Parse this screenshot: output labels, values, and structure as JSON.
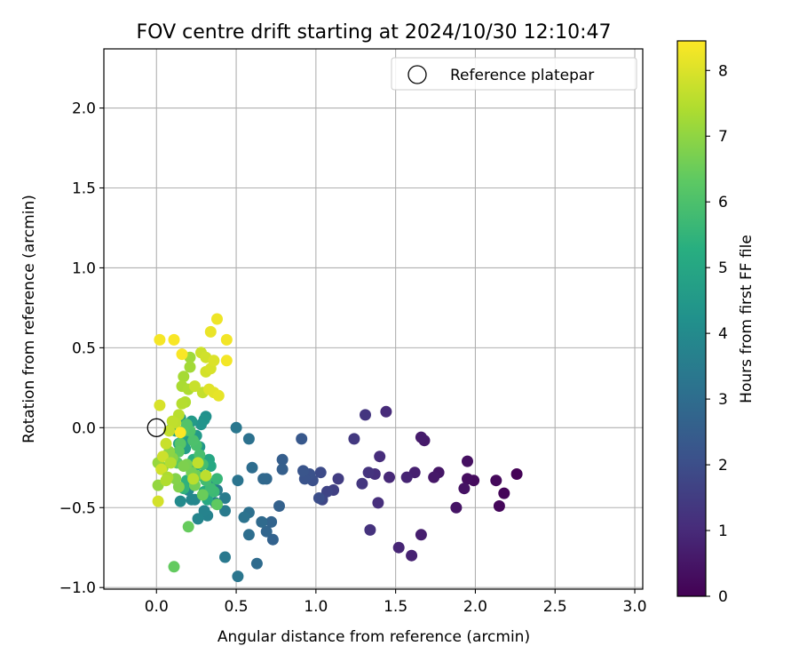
{
  "chart_data": {
    "type": "scatter",
    "title": "FOV centre drift starting at 2024/10/30 12:10:47",
    "xlabel": "Angular distance from reference (arcmin)",
    "ylabel": "Rotation from reference (arcmin)",
    "xlim": [
      -0.33,
      3.05
    ],
    "ylim": [
      -1.01,
      2.37
    ],
    "xticks": [
      0.0,
      0.5,
      1.0,
      1.5,
      2.0,
      2.5,
      3.0
    ],
    "xtick_labels": [
      "0.0",
      "0.5",
      "1.0",
      "1.5",
      "2.0",
      "2.5",
      "3.0"
    ],
    "yticks": [
      -1.0,
      -0.5,
      0.0,
      0.5,
      1.0,
      1.5,
      2.0
    ],
    "ytick_labels": [
      "−1.0",
      "−0.5",
      "0.0",
      "0.5",
      "1.0",
      "1.5",
      "2.0"
    ],
    "grid": true,
    "legend": {
      "placement": "upper right",
      "entries": [
        "Reference platepar"
      ]
    },
    "colorbar": {
      "label": "Hours from first FF file",
      "colormap": "viridis",
      "range": [
        0,
        8.45
      ],
      "ticks": [
        0,
        1,
        2,
        3,
        4,
        5,
        6,
        7,
        8
      ],
      "tick_labels": [
        "0",
        "1",
        "2",
        "3",
        "4",
        "5",
        "6",
        "7",
        "8"
      ]
    },
    "reference_point": {
      "name": "Reference platepar",
      "x": 0.0,
      "y": 0.0
    },
    "series": [
      {
        "points": [
          [
            2.26,
            -0.29,
            0.05
          ],
          [
            2.18,
            -0.41,
            0.1
          ],
          [
            2.15,
            -0.49,
            0.15
          ],
          [
            2.13,
            -0.33,
            0.2
          ],
          [
            1.99,
            -0.33,
            0.25
          ],
          [
            1.95,
            -0.32,
            0.3
          ],
          [
            1.95,
            -0.21,
            0.35
          ],
          [
            1.93,
            -0.38,
            0.4
          ],
          [
            1.88,
            -0.5,
            0.45
          ],
          [
            1.77,
            -0.28,
            0.5
          ],
          [
            1.74,
            -0.31,
            0.55
          ],
          [
            1.68,
            -0.08,
            0.6
          ],
          [
            1.66,
            -0.06,
            0.65
          ],
          [
            1.66,
            -0.67,
            0.7
          ],
          [
            1.62,
            -0.28,
            0.75
          ],
          [
            1.6,
            -0.8,
            0.8
          ],
          [
            1.57,
            -0.31,
            0.85
          ],
          [
            1.52,
            -0.75,
            0.9
          ],
          [
            1.46,
            -0.31,
            0.95
          ],
          [
            1.44,
            0.1,
            1.0
          ],
          [
            1.4,
            -0.18,
            1.05
          ],
          [
            1.39,
            -0.47,
            1.1
          ],
          [
            1.37,
            -0.29,
            1.15
          ],
          [
            1.34,
            -0.64,
            1.2
          ],
          [
            1.33,
            -0.28,
            1.25
          ],
          [
            1.31,
            0.08,
            1.3
          ],
          [
            1.29,
            -0.35,
            1.35
          ],
          [
            1.24,
            -0.07,
            1.4
          ],
          [
            1.14,
            -0.32,
            1.5
          ],
          [
            1.11,
            -0.39,
            1.6
          ],
          [
            1.07,
            -0.4,
            1.7
          ],
          [
            1.04,
            -0.45,
            1.8
          ],
          [
            1.03,
            -0.28,
            1.9
          ],
          [
            1.02,
            -0.44,
            2.0
          ],
          [
            0.98,
            -0.33,
            2.05
          ],
          [
            0.96,
            -0.29,
            2.1
          ],
          [
            0.93,
            -0.32,
            2.15
          ],
          [
            0.92,
            -0.27,
            2.2
          ],
          [
            0.91,
            -0.07,
            2.3
          ],
          [
            0.79,
            -0.2,
            2.5
          ],
          [
            0.79,
            -0.26,
            2.55
          ],
          [
            0.77,
            -0.49,
            2.6
          ],
          [
            0.73,
            -0.7,
            2.65
          ],
          [
            0.72,
            -0.59,
            2.7
          ],
          [
            0.69,
            -0.65,
            2.75
          ],
          [
            0.69,
            -0.32,
            2.8
          ],
          [
            0.67,
            -0.32,
            2.85
          ],
          [
            0.66,
            -0.59,
            2.9
          ],
          [
            0.63,
            -0.85,
            2.95
          ],
          [
            0.6,
            -0.25,
            3.0
          ],
          [
            0.58,
            -0.67,
            3.05
          ],
          [
            0.58,
            -0.53,
            3.1
          ],
          [
            0.58,
            -0.07,
            3.15
          ],
          [
            0.55,
            -0.56,
            3.2
          ],
          [
            0.51,
            -0.33,
            3.25
          ],
          [
            0.51,
            -0.93,
            3.3
          ],
          [
            0.5,
            0.0,
            3.35
          ],
          [
            0.43,
            -0.81,
            3.4
          ],
          [
            0.43,
            -0.52,
            3.45
          ],
          [
            0.43,
            -0.44,
            3.5
          ],
          [
            0.38,
            -0.39,
            3.55
          ],
          [
            0.37,
            -0.47,
            3.6
          ],
          [
            0.35,
            -0.35,
            3.65
          ],
          [
            0.32,
            -0.55,
            3.7
          ],
          [
            0.3,
            -0.52,
            3.75
          ],
          [
            0.26,
            -0.57,
            3.8
          ],
          [
            0.24,
            -0.45,
            3.85
          ],
          [
            0.22,
            -0.45,
            3.9
          ],
          [
            0.2,
            -0.39,
            3.95
          ],
          [
            0.15,
            -0.46,
            4.0
          ],
          [
            0.31,
            0.07,
            4.2
          ],
          [
            0.3,
            0.05,
            4.3
          ],
          [
            0.28,
            0.02,
            4.35
          ],
          [
            0.27,
            -0.12,
            4.45
          ],
          [
            0.25,
            -0.05,
            4.5
          ],
          [
            0.22,
            0.04,
            4.55
          ],
          [
            0.2,
            -0.07,
            4.6
          ],
          [
            0.18,
            -0.13,
            4.65
          ],
          [
            0.16,
            -0.04,
            4.7
          ],
          [
            0.15,
            0.06,
            4.75
          ],
          [
            0.14,
            -0.1,
            4.8
          ],
          [
            0.12,
            -0.02,
            4.85
          ],
          [
            0.1,
            0.0,
            4.9
          ],
          [
            0.09,
            -0.21,
            4.95
          ],
          [
            0.33,
            -0.2,
            5.0
          ],
          [
            0.34,
            -0.24,
            5.05
          ],
          [
            0.32,
            -0.45,
            5.1
          ],
          [
            0.3,
            -0.4,
            5.15
          ],
          [
            0.28,
            -0.3,
            5.2
          ],
          [
            0.26,
            -0.23,
            5.25
          ],
          [
            0.23,
            -0.2,
            5.3
          ],
          [
            0.21,
            -0.23,
            5.35
          ],
          [
            0.19,
            -0.33,
            5.4
          ],
          [
            0.17,
            -0.38,
            5.45
          ],
          [
            0.38,
            -0.32,
            5.6
          ],
          [
            0.36,
            -0.4,
            5.7
          ],
          [
            0.34,
            -0.38,
            5.75
          ],
          [
            0.31,
            -0.33,
            5.8
          ],
          [
            0.29,
            -0.23,
            5.85
          ],
          [
            0.27,
            -0.17,
            5.9
          ],
          [
            0.25,
            -0.11,
            5.95
          ],
          [
            0.23,
            -0.08,
            6.0
          ],
          [
            0.21,
            -0.02,
            6.05
          ],
          [
            0.19,
            0.02,
            6.1
          ],
          [
            0.17,
            -0.02,
            6.15
          ],
          [
            0.15,
            -0.1,
            6.2
          ],
          [
            0.14,
            -0.15,
            6.25
          ],
          [
            0.13,
            -0.22,
            6.3
          ],
          [
            0.38,
            -0.48,
            6.35
          ],
          [
            0.11,
            -0.87,
            6.4
          ],
          [
            0.2,
            -0.62,
            6.45
          ],
          [
            0.29,
            -0.42,
            6.5
          ],
          [
            0.25,
            -0.3,
            6.55
          ],
          [
            0.24,
            -0.36,
            6.6
          ],
          [
            0.22,
            -0.28,
            6.65
          ],
          [
            0.19,
            -0.23,
            6.7
          ],
          [
            0.17,
            -0.24,
            6.75
          ],
          [
            0.14,
            -0.37,
            6.8
          ],
          [
            0.12,
            -0.32,
            6.85
          ],
          [
            0.1,
            -0.19,
            6.9
          ],
          [
            0.08,
            -0.15,
            6.95
          ],
          [
            0.04,
            -0.25,
            7.0
          ],
          [
            0.01,
            -0.36,
            7.05
          ],
          [
            0.01,
            -0.22,
            7.1
          ],
          [
            0.21,
            0.44,
            7.2
          ],
          [
            0.21,
            0.38,
            7.25
          ],
          [
            0.17,
            0.32,
            7.3
          ],
          [
            0.16,
            0.26,
            7.35
          ],
          [
            0.2,
            0.24,
            7.4
          ],
          [
            0.18,
            0.16,
            7.45
          ],
          [
            0.16,
            0.15,
            7.5
          ],
          [
            0.14,
            0.08,
            7.55
          ],
          [
            0.12,
            0.03,
            7.6
          ],
          [
            0.1,
            0.04,
            7.65
          ],
          [
            0.08,
            -0.02,
            7.7
          ],
          [
            0.06,
            -0.1,
            7.75
          ],
          [
            0.04,
            -0.18,
            7.8
          ],
          [
            0.03,
            -0.26,
            7.85
          ],
          [
            0.01,
            -0.46,
            7.9
          ],
          [
            0.02,
            0.14,
            7.95
          ],
          [
            0.07,
            -0.31,
            7.4
          ],
          [
            0.06,
            -0.33,
            7.45
          ],
          [
            0.09,
            -0.22,
            7.5
          ],
          [
            0.23,
            -0.32,
            7.55
          ],
          [
            0.31,
            -0.3,
            7.6
          ],
          [
            0.26,
            -0.22,
            7.65
          ],
          [
            0.29,
            0.22,
            7.7
          ],
          [
            0.24,
            0.26,
            7.75
          ],
          [
            0.28,
            0.47,
            7.8
          ],
          [
            0.31,
            0.44,
            7.85
          ],
          [
            0.31,
            0.35,
            7.9
          ],
          [
            0.34,
            0.37,
            7.95
          ],
          [
            0.36,
            0.42,
            8.0
          ],
          [
            0.33,
            0.24,
            8.05
          ],
          [
            0.36,
            0.22,
            8.1
          ],
          [
            0.39,
            0.2,
            8.15
          ],
          [
            0.34,
            0.6,
            8.2
          ],
          [
            0.38,
            0.68,
            8.25
          ],
          [
            0.44,
            0.55,
            8.3
          ],
          [
            0.44,
            0.42,
            8.32
          ],
          [
            0.02,
            0.55,
            8.35
          ],
          [
            0.11,
            0.55,
            8.38
          ],
          [
            0.16,
            0.46,
            8.4
          ],
          [
            0.15,
            -0.03,
            8.42
          ]
        ]
      }
    ]
  }
}
